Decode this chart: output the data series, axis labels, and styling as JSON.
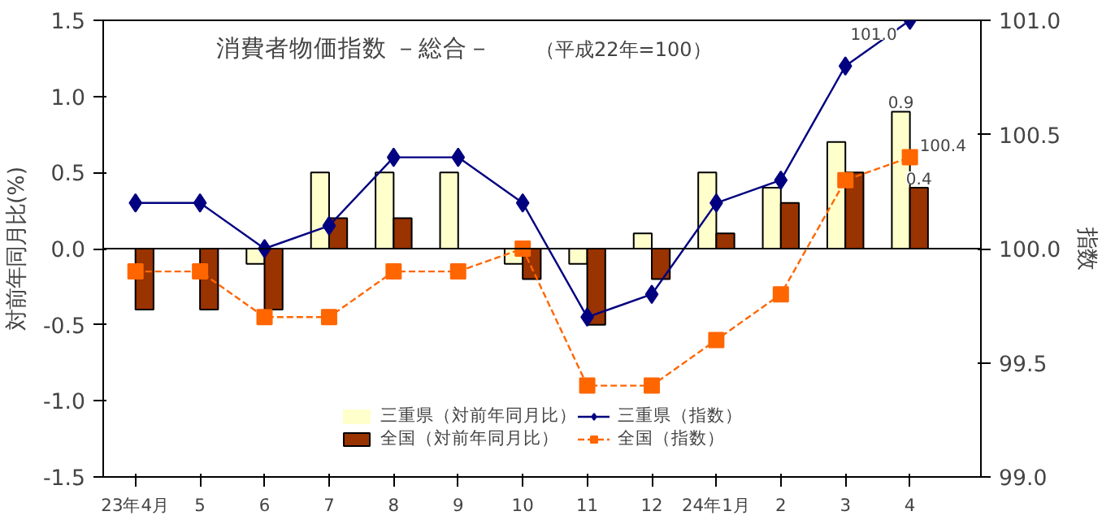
{
  "chart_data": {
    "type": "bar",
    "title": "消費者物価指数 －総合－",
    "subtitle": "（平成22年=100）",
    "ylabel": "対前年同月比(%)",
    "y2label": "指数",
    "categories": [
      "23年4月",
      "5",
      "6",
      "7",
      "8",
      "9",
      "10",
      "11",
      "12",
      "24年1月",
      "2",
      "3",
      "4"
    ],
    "series": [
      {
        "name": "三重県（対前年同月比）",
        "color": "#ffffcc",
        "values": [
          0,
          0,
          -0.1,
          0.5,
          0.5,
          0.5,
          -0.1,
          -0.1,
          0.1,
          0.5,
          0.4,
          0.7,
          0.9
        ],
        "value_labels": [
          null,
          null,
          null,
          null,
          null,
          null,
          null,
          null,
          null,
          null,
          null,
          null,
          "0.9"
        ]
      },
      {
        "name": "全国（対前年同月比）",
        "color": "#993300",
        "values": [
          -0.4,
          -0.4,
          -0.4,
          0.2,
          0.2,
          0,
          -0.2,
          -0.5,
          -0.2,
          0.1,
          0.3,
          0.5,
          0.4
        ],
        "value_labels": [
          null,
          null,
          null,
          null,
          null,
          null,
          null,
          null,
          null,
          null,
          null,
          null,
          "0.4"
        ]
      },
      {
        "name": "三重県（指数）",
        "type": "line",
        "axis": "y2",
        "color": "#000080",
        "marker": "diamond",
        "line_style": "solid",
        "values": [
          100.2,
          100.2,
          100.0,
          100.1,
          100.4,
          100.4,
          100.2,
          99.7,
          99.8,
          100.2,
          100.3,
          100.8,
          101.0
        ],
        "value_labels": [
          null,
          null,
          null,
          null,
          null,
          null,
          null,
          null,
          null,
          null,
          null,
          null,
          "101.0"
        ]
      },
      {
        "name": "全国（指数）",
        "type": "line",
        "axis": "y2",
        "color": "#ff6600",
        "marker": "square",
        "line_style": "dashed",
        "values": [
          99.9,
          99.9,
          99.7,
          99.7,
          99.9,
          99.9,
          100.0,
          99.4,
          99.4,
          99.6,
          99.8,
          100.3,
          100.4
        ],
        "value_labels": [
          null,
          null,
          null,
          null,
          null,
          null,
          null,
          null,
          null,
          null,
          null,
          null,
          "100.4"
        ]
      }
    ],
    "ylim": [
      -1.5,
      1.5
    ],
    "yticks": [
      {
        "value": -1.5,
        "label": "-1.5"
      },
      {
        "value": -1.0,
        "label": "-1.0"
      },
      {
        "value": -0.5,
        "label": "-0.5"
      },
      {
        "value": 0,
        "label": "0.0"
      },
      {
        "value": 0.5,
        "label": "0.5"
      },
      {
        "value": 1.0,
        "label": "1.0"
      },
      {
        "value": 1.5,
        "label": "1.5"
      }
    ],
    "y2lim": [
      99.0,
      101.0
    ],
    "y2ticks": [
      {
        "value": 99.0,
        "label": "99.0"
      },
      {
        "value": 99.5,
        "label": "99.5"
      },
      {
        "value": 100.0,
        "label": "100.0"
      },
      {
        "value": 100.5,
        "label": "100.5"
      },
      {
        "value": 101.0,
        "label": "101.0"
      }
    ],
    "ref_lines": [
      {
        "axis": "y",
        "value": 0,
        "color": "#000000"
      }
    ],
    "grid": false,
    "legend": "bottom"
  }
}
